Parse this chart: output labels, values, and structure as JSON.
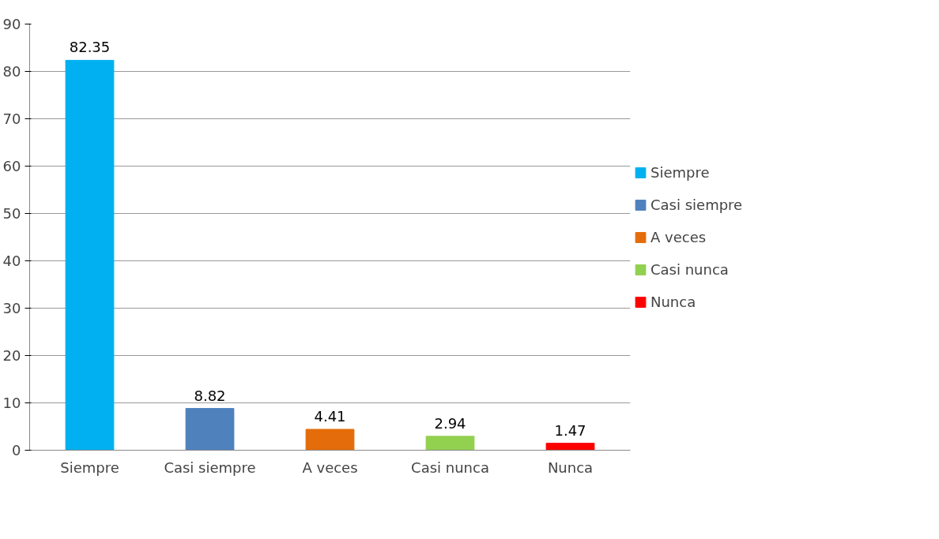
{
  "chart_data": {
    "type": "bar",
    "categories": [
      "Siempre",
      "Casi siempre",
      "A veces",
      "Casi nunca",
      "Nunca"
    ],
    "series": [
      {
        "name": "Siempre",
        "color": "#00b0f0",
        "values": [
          82.35,
          null,
          null,
          null,
          null
        ]
      },
      {
        "name": "Casi siempre",
        "color": "#4f81bd",
        "values": [
          null,
          8.82,
          null,
          null,
          null
        ]
      },
      {
        "name": "A veces",
        "color": "#e46c0a",
        "values": [
          null,
          null,
          4.41,
          null,
          null
        ]
      },
      {
        "name": "Casi nunca",
        "color": "#92d050",
        "values": [
          null,
          null,
          null,
          2.94,
          null
        ]
      },
      {
        "name": "Nunca",
        "color": "#ff0000",
        "values": [
          null,
          null,
          null,
          null,
          1.47
        ]
      }
    ],
    "ylim": [
      0,
      90
    ],
    "yticks": [
      0,
      10,
      20,
      30,
      40,
      50,
      60,
      70,
      80,
      90
    ],
    "grid": "y",
    "legend": "right",
    "data_labels": true
  }
}
